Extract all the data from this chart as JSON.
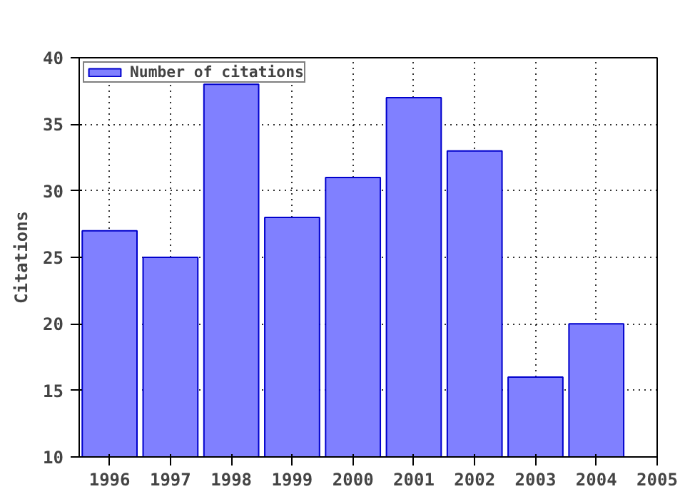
{
  "chart_data": {
    "type": "bar",
    "ylabel": "Citations",
    "x": [
      1996,
      1997,
      1998,
      1999,
      2000,
      2001,
      2002,
      2003,
      2004
    ],
    "series": [
      {
        "name": "Number of citations",
        "color": "#8080ff",
        "values": [
          27,
          25,
          38,
          28,
          31,
          37,
          33,
          16,
          20
        ]
      }
    ],
    "xlim": [
      1995.5,
      2005
    ],
    "xticks": [
      1996,
      1997,
      1998,
      1999,
      2000,
      2001,
      2002,
      2003,
      2004,
      2005
    ],
    "ylim": [
      10,
      40
    ],
    "yticks": [
      10,
      15,
      20,
      25,
      30,
      35,
      40
    ],
    "grid": true,
    "legend": "top left"
  }
}
